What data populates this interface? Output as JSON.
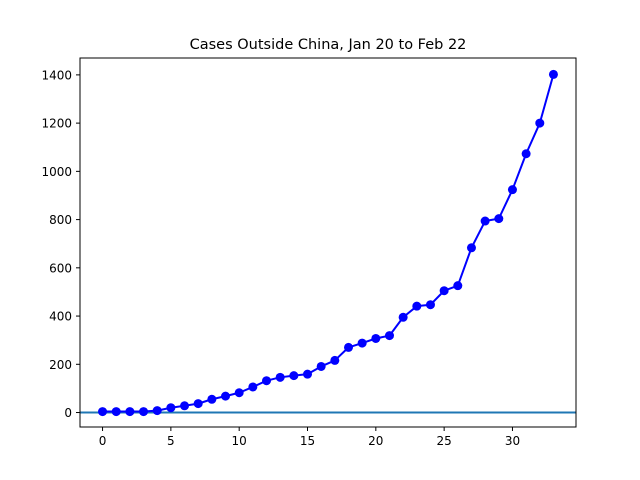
{
  "chart_data": {
    "type": "line",
    "title": "Cases Outside China, Jan 20 to Feb 22",
    "xlabel": "",
    "ylabel": "",
    "xlim": [
      -1.65,
      34.65
    ],
    "ylim": [
      -60,
      1470
    ],
    "x_ticks": [
      0,
      5,
      10,
      15,
      20,
      25,
      30
    ],
    "y_ticks": [
      0,
      200,
      400,
      600,
      800,
      1000,
      1200,
      1400
    ],
    "grid": false,
    "legend": "none",
    "series": [
      {
        "color": "#0000ff",
        "marker": "circle",
        "x": [
          0,
          1,
          2,
          3,
          4,
          5,
          6,
          7,
          8,
          9,
          10,
          11,
          12,
          13,
          14,
          15,
          16,
          17,
          18,
          19,
          20,
          21,
          22,
          23,
          24,
          25,
          26,
          27,
          28,
          29,
          30,
          31,
          32,
          33
        ],
        "y": [
          4,
          4,
          4,
          4,
          8,
          20,
          28,
          37,
          55,
          68,
          82,
          106,
          132,
          146,
          153,
          159,
          191,
          216,
          270,
          288,
          307,
          319,
          395,
          441,
          447,
          505,
          526,
          683,
          794,
          804,
          924,
          1073,
          1200,
          1402
        ]
      }
    ],
    "reference_lines": [
      {
        "orientation": "horizontal",
        "y": 0,
        "color": "#1f77b4"
      }
    ]
  }
}
